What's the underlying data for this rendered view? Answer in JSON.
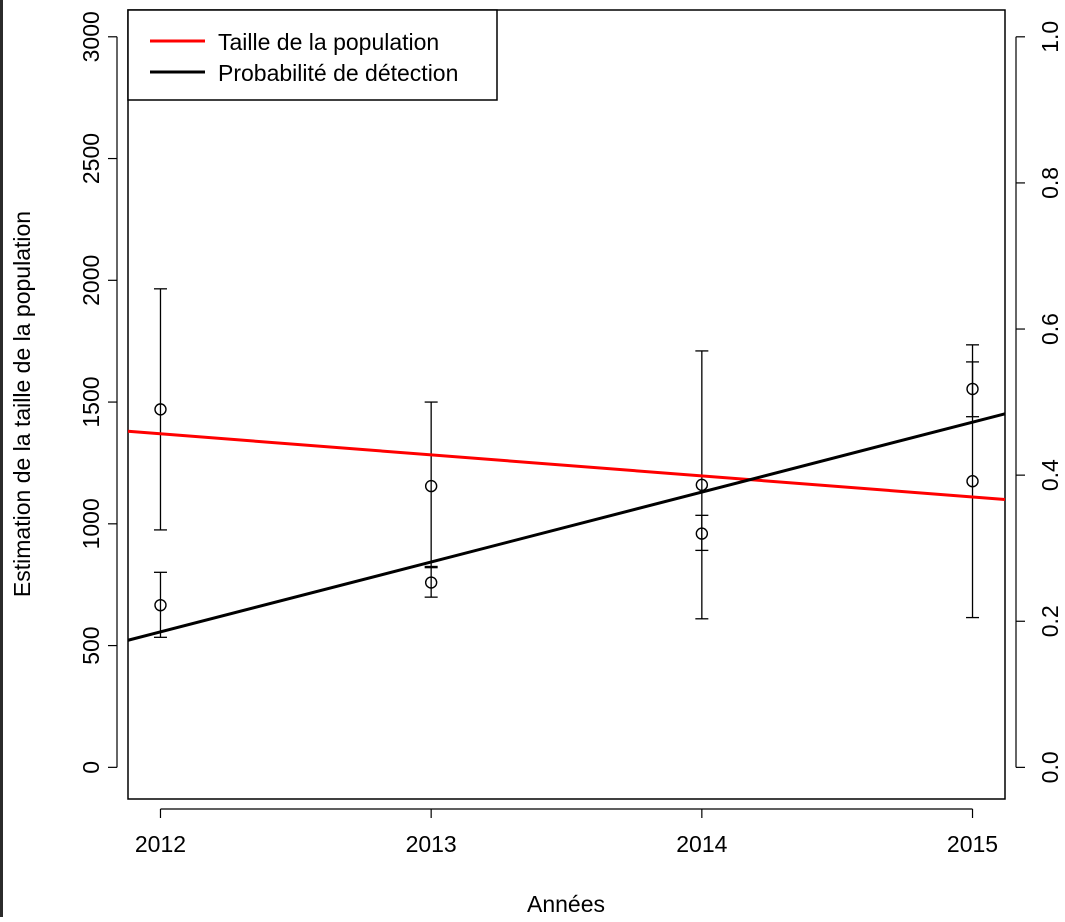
{
  "chart_data": {
    "type": "line",
    "xlabel": "Années",
    "ylabel": "Estimation de la taille de la population",
    "x_ticks": [
      2012,
      2013,
      2014,
      2015
    ],
    "xlim": [
      2011.88,
      2015.12
    ],
    "ylim_left": [
      -130,
      3110
    ],
    "ylim_right": [
      -0.0433,
      1.0367
    ],
    "yticks_left": [
      0,
      500,
      1000,
      1500,
      2000,
      2500,
      3000
    ],
    "yticks_right": [
      "0.0",
      "0.2",
      "0.4",
      "0.6",
      "0.8",
      "1.0"
    ],
    "legend": {
      "placement": "top-left",
      "entries": [
        {
          "label": "Taille de la population",
          "color": "#ff0000"
        },
        {
          "label": "Probabilité de détection",
          "color": "#000000"
        }
      ]
    },
    "series": [
      {
        "name": "Taille de la population",
        "axis": "left",
        "color": "#ff0000",
        "kind": "trend_line",
        "line": {
          "x": [
            2011.88,
            2015.12
          ],
          "y": [
            1380,
            1100
          ]
        },
        "points": [
          {
            "x": 2012,
            "y": 1470,
            "lower": 975,
            "upper": 1965
          },
          {
            "x": 2013,
            "y": 1155,
            "lower": 820,
            "upper": 1500
          },
          {
            "x": 2014,
            "y": 1160,
            "lower": 610,
            "upper": 1710
          },
          {
            "x": 2015,
            "y": 1175,
            "lower": 615,
            "upper": 1735
          }
        ]
      },
      {
        "name": "Probabilité de détection",
        "axis": "right",
        "color": "#000000",
        "kind": "trend_line",
        "line": {
          "x": [
            2011.88,
            2015.12
          ],
          "y": [
            0.174,
            0.484
          ]
        },
        "points": [
          {
            "x": 2012,
            "y": 0.222,
            "lower": 0.178,
            "upper": 0.267
          },
          {
            "x": 2013,
            "y": 0.253,
            "lower": 0.233,
            "upper": 0.275
          },
          {
            "x": 2014,
            "y": 0.32,
            "lower": 0.297,
            "upper": 0.345
          },
          {
            "x": 2015,
            "y": 0.518,
            "lower": 0.48,
            "upper": 0.555
          }
        ]
      }
    ]
  }
}
